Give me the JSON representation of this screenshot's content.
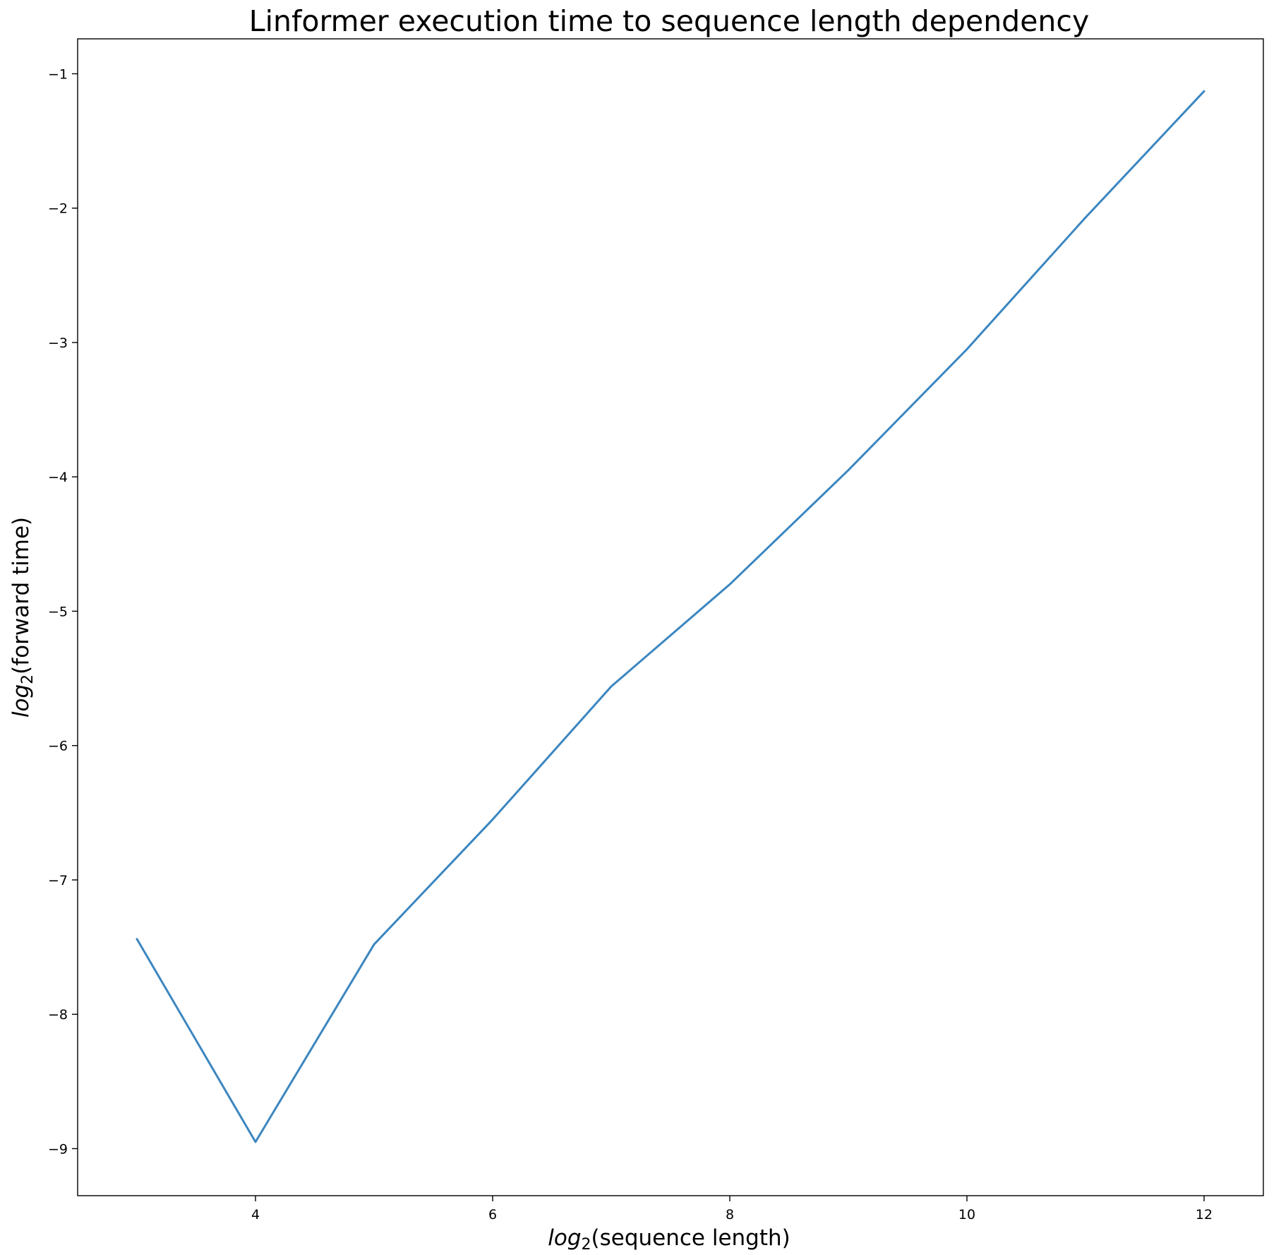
{
  "chart_data": {
    "type": "line",
    "title": "Linformer execution time to sequence length dependency",
    "xlabel": {
      "fn": "log",
      "sub": "2",
      "arg": "(sequence length)"
    },
    "ylabel": {
      "fn": "log",
      "sub": "2",
      "arg": "(forward time)"
    },
    "xlim": [
      2.5,
      12.5
    ],
    "ylim": [
      -9.35,
      -0.74
    ],
    "xticks": [
      4,
      6,
      8,
      10,
      12
    ],
    "xtick_labels": [
      "4",
      "6",
      "8",
      "10",
      "12"
    ],
    "yticks": [
      -1,
      -2,
      -3,
      -4,
      -5,
      -6,
      -7,
      -8,
      -9
    ],
    "ytick_labels": [
      "−1",
      "−2",
      "−3",
      "−4",
      "−5",
      "−6",
      "−7",
      "−8",
      "−9"
    ],
    "grid": false,
    "legend": "none",
    "series": [
      {
        "color": "#3b86c0",
        "x": [
          3,
          4,
          5,
          6,
          7,
          8,
          9,
          10,
          11,
          12
        ],
        "y": [
          -7.44,
          -8.95,
          -7.48,
          -6.55,
          -5.56,
          -4.8,
          -3.95,
          -3.05,
          -2.07,
          -1.13
        ]
      }
    ]
  }
}
